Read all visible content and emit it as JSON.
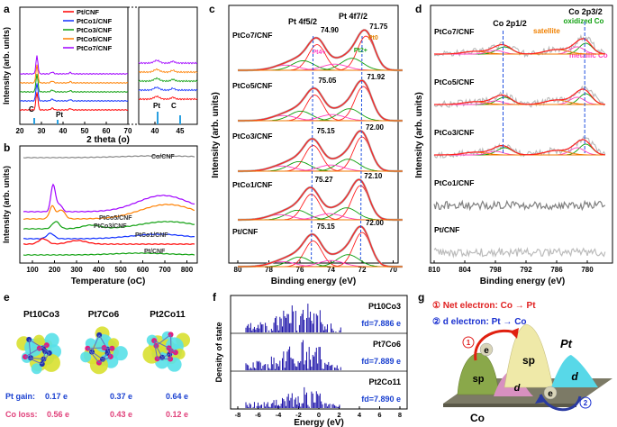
{
  "panels": {
    "a": {
      "letter": "a",
      "xlabel": "2 theta (o)",
      "ylabel": "Intensity (arb. units)",
      "ticks_main": [
        "20",
        "30",
        "40",
        "50",
        "60",
        "70"
      ],
      "ticks_zoom": [
        "40",
        "45"
      ],
      "legend": [
        "Pt/CNF",
        "PtCo1/CNF",
        "PtCo3/CNF",
        "PtCo5/CNF",
        "PtCo7/CNF"
      ],
      "ann_pt": "Pt",
      "ann_c": "C"
    },
    "b": {
      "letter": "b",
      "xlabel": "Temperature (oC)",
      "ylabel": "Intensity (arb. units)",
      "ticks": [
        "100",
        "200",
        "300",
        "400",
        "500",
        "600",
        "700",
        "800"
      ],
      "series_labels": [
        "Co/CNF",
        "PtCo5/CNF",
        "PtCo3/CNF",
        "PtCo1/CNF",
        "Pt/CNF"
      ]
    },
    "c": {
      "letter": "c",
      "xlabel": "Binding energy (eV)",
      "ylabel": "Intensity (arb. units)",
      "ticks": [
        "80",
        "78",
        "76",
        "74",
        "72",
        "70"
      ],
      "header_left": "Pt 4f5/2",
      "header_right": "Pt 4f7/2",
      "samples": [
        {
          "label": "PtCo7/CNF",
          "peak1": "74.90",
          "peak2": "71.75",
          "extra": [
            "Pt0",
            "Pt2+",
            "Pt4+"
          ]
        },
        {
          "label": "PtCo5/CNF",
          "peak1": "75.05",
          "peak2": "71.92"
        },
        {
          "label": "PtCo3/CNF",
          "peak1": "75.15",
          "peak2": "72.00"
        },
        {
          "label": "PtCo1/CNF",
          "peak1": "75.27",
          "peak2": "72.10"
        },
        {
          "label": "Pt/CNF",
          "peak1": "75.15",
          "peak2": "72.00"
        }
      ]
    },
    "d": {
      "letter": "d",
      "xlabel": "Binding energy (eV)",
      "ylabel": "Intensity (arb. units)",
      "ticks": [
        "810",
        "804",
        "798",
        "792",
        "786",
        "780"
      ],
      "header_left": "Co 2p1/2",
      "header_right": "Co 2p3/2",
      "ann_satellite": "satellite",
      "ann_oxidized": "oxidized Co",
      "ann_metallic": "metallic Co",
      "samples": [
        "PtCo7/CNF",
        "PtCo5/CNF",
        "PtCo3/CNF",
        "PtCo1/CNF",
        "Pt/CNF"
      ]
    },
    "e": {
      "letter": "e",
      "structures": [
        "Pt10Co3",
        "Pt7Co6",
        "Pt2Co11"
      ],
      "pt_gain_label": "Pt gain:",
      "co_loss_label": "Co loss:",
      "pt_gain": [
        "0.17 e",
        "0.37 e",
        "0.64 e"
      ],
      "co_loss": [
        "0.56 e",
        "0.43 e",
        "0.12 e"
      ]
    },
    "f": {
      "letter": "f",
      "xlabel": "Energy (eV)",
      "ylabel": "Density of state",
      "ticks": [
        "-8",
        "-6",
        "-4",
        "-2",
        "0",
        "2",
        "4",
        "6",
        "8"
      ],
      "rows": [
        {
          "name": "Pt10Co3",
          "fd": "fd=7.886 e"
        },
        {
          "name": "Pt7Co6",
          "fd": "fd=7.889 e"
        },
        {
          "name": "Pt2Co11",
          "fd": "fd=7.890 e"
        }
      ]
    },
    "g": {
      "letter": "g",
      "line1": "① Net electron: Co → Pt",
      "line2": "② d electron: Pt → Co",
      "label_pt": "Pt",
      "label_co": "Co",
      "label_sp": "sp",
      "label_d": "d",
      "label_e": "e"
    }
  },
  "colors": {
    "pt": "#ff0000",
    "ptco1": "#1030ff",
    "ptco3": "#10a010",
    "ptco5": "#ff8000",
    "ptco7": "#a000ff",
    "fit_red": "#ff2020",
    "fit_orange": "#f07800",
    "fit_green": "#10a010",
    "fit_pink": "#ff40c0"
  }
}
